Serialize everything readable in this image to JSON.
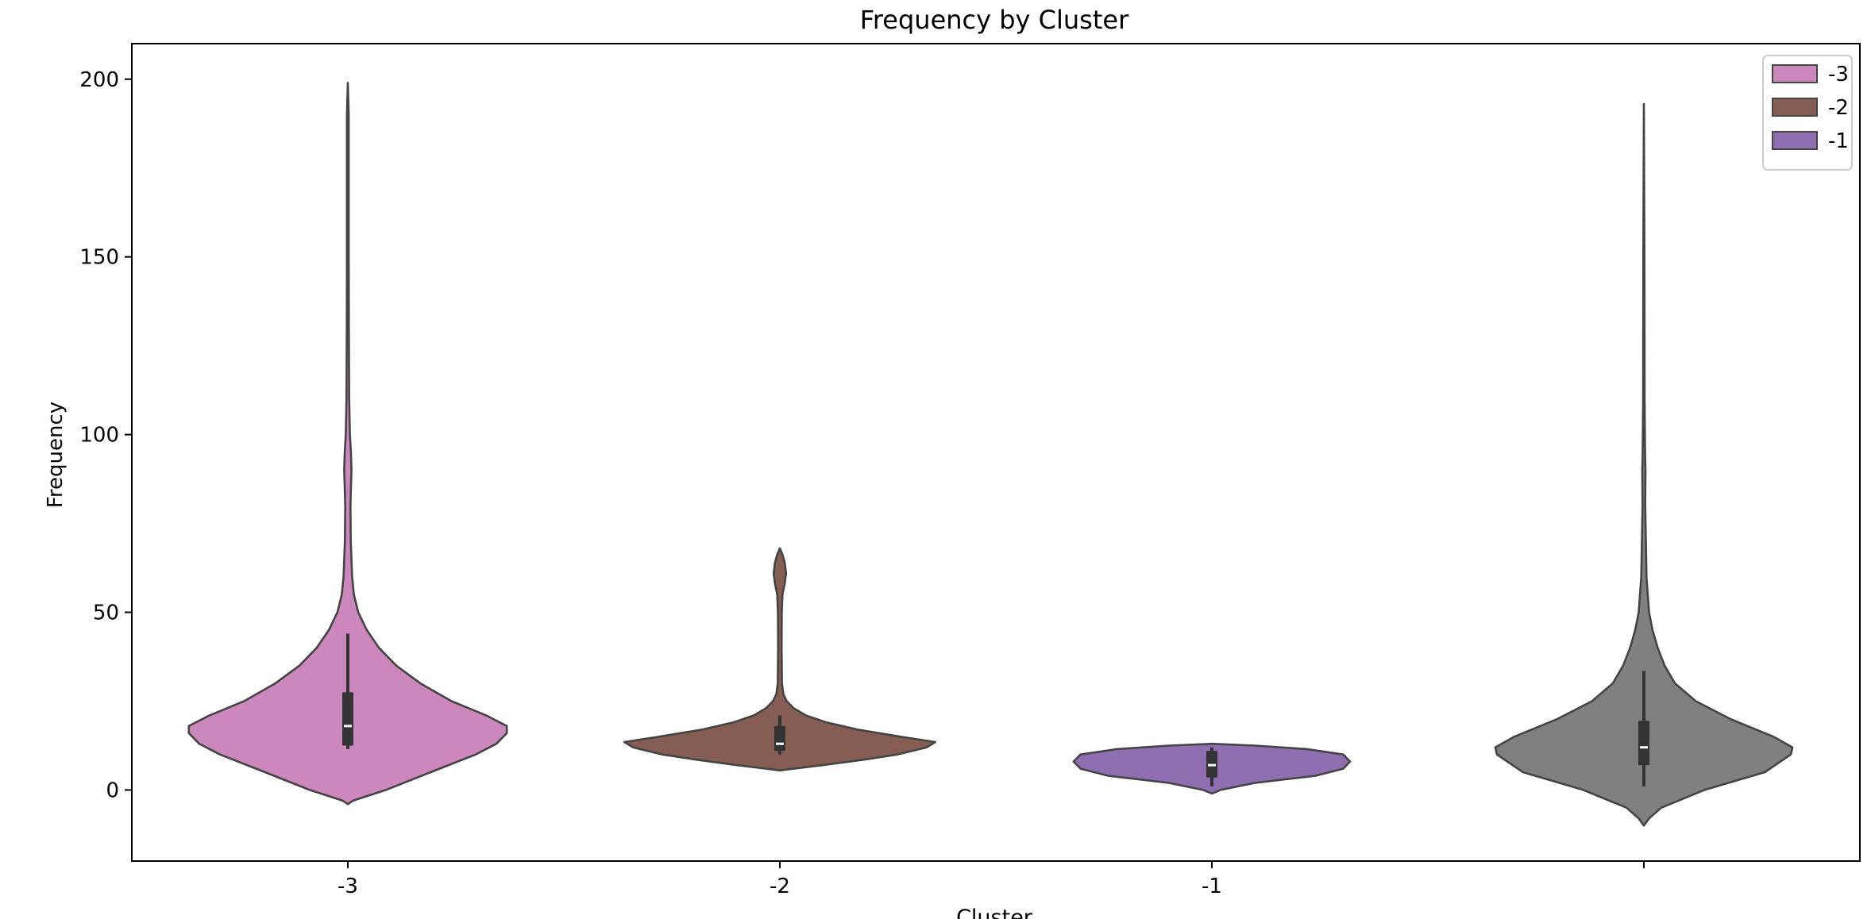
{
  "chart_data": {
    "type": "violin",
    "title": "Frequency by Cluster",
    "xlabel": "Cluster",
    "ylabel": "Frequency",
    "ylim": [
      -20,
      210
    ],
    "yticks": [
      0,
      50,
      100,
      150,
      200
    ],
    "categories": [
      "-3",
      "-2",
      "-1",
      ""
    ],
    "legend": {
      "placement": "top-right",
      "entries": [
        {
          "label": "-3",
          "color": "#cc87bd"
        },
        {
          "label": "-2",
          "color": "#855d52"
        },
        {
          "label": "-1",
          "color": "#8f6eb2"
        }
      ]
    },
    "series": [
      {
        "category": "-3",
        "color": "#cc87bd",
        "box": {
          "q1": 12.5,
          "median": 18,
          "q3": 27.5,
          "whisker_low": 11.5,
          "whisker_high": 44
        },
        "profile": [
          [
            -4,
            0.0
          ],
          [
            -3,
            0.03
          ],
          [
            0,
            0.22
          ],
          [
            5,
            0.48
          ],
          [
            10,
            0.74
          ],
          [
            13,
            0.86
          ],
          [
            16,
            0.92
          ],
          [
            18,
            0.92
          ],
          [
            21,
            0.8
          ],
          [
            25,
            0.6
          ],
          [
            30,
            0.42
          ],
          [
            35,
            0.28
          ],
          [
            40,
            0.18
          ],
          [
            45,
            0.11
          ],
          [
            50,
            0.06
          ],
          [
            55,
            0.035
          ],
          [
            60,
            0.025
          ],
          [
            70,
            0.017
          ],
          [
            80,
            0.015
          ],
          [
            85,
            0.018
          ],
          [
            90,
            0.021
          ],
          [
            95,
            0.018
          ],
          [
            100,
            0.012
          ],
          [
            110,
            0.008
          ],
          [
            130,
            0.006
          ],
          [
            150,
            0.005
          ],
          [
            170,
            0.005
          ],
          [
            190,
            0.005
          ],
          [
            199,
            0.0
          ]
        ]
      },
      {
        "category": "-2",
        "color": "#855d52",
        "box": {
          "q1": 11,
          "median": 13,
          "q3": 18,
          "whisker_low": 10,
          "whisker_high": 21
        },
        "profile": [
          [
            5.5,
            0.0
          ],
          [
            6,
            0.08
          ],
          [
            7,
            0.25
          ],
          [
            8.5,
            0.48
          ],
          [
            10,
            0.68
          ],
          [
            12,
            0.85
          ],
          [
            13.5,
            0.9
          ],
          [
            15,
            0.7
          ],
          [
            17,
            0.45
          ],
          [
            19,
            0.27
          ],
          [
            21,
            0.15
          ],
          [
            23,
            0.08
          ],
          [
            25,
            0.04
          ],
          [
            27,
            0.02
          ],
          [
            30,
            0.012
          ],
          [
            40,
            0.01
          ],
          [
            50,
            0.011
          ],
          [
            55,
            0.015
          ],
          [
            58,
            0.028
          ],
          [
            61,
            0.036
          ],
          [
            64,
            0.028
          ],
          [
            66,
            0.017
          ],
          [
            68,
            0.0
          ]
        ]
      },
      {
        "category": "-1",
        "color": "#8f6eb2",
        "box": {
          "q1": 3.5,
          "median": 7,
          "q3": 11,
          "whisker_low": 1,
          "whisker_high": 12
        },
        "profile": [
          [
            -1,
            0.0
          ],
          [
            0,
            0.05
          ],
          [
            2,
            0.25
          ],
          [
            4,
            0.6
          ],
          [
            6,
            0.76
          ],
          [
            8,
            0.8
          ],
          [
            10,
            0.76
          ],
          [
            11.5,
            0.55
          ],
          [
            12.5,
            0.25
          ],
          [
            13,
            0.0
          ]
        ]
      },
      {
        "category": "",
        "color": "#808080",
        "box": {
          "q1": 7,
          "median": 12,
          "q3": 19.5,
          "whisker_low": 1,
          "whisker_high": 33.5
        },
        "profile": [
          [
            -10,
            0.0
          ],
          [
            -8,
            0.03
          ],
          [
            -5,
            0.1
          ],
          [
            0,
            0.35
          ],
          [
            5,
            0.7
          ],
          [
            10,
            0.85
          ],
          [
            12,
            0.86
          ],
          [
            15,
            0.75
          ],
          [
            20,
            0.5
          ],
          [
            25,
            0.3
          ],
          [
            30,
            0.18
          ],
          [
            35,
            0.12
          ],
          [
            40,
            0.08
          ],
          [
            45,
            0.05
          ],
          [
            50,
            0.03
          ],
          [
            60,
            0.015
          ],
          [
            80,
            0.008
          ],
          [
            90,
            0.009
          ],
          [
            95,
            0.007
          ],
          [
            110,
            0.004
          ],
          [
            150,
            0.003
          ],
          [
            193,
            0.0
          ]
        ]
      }
    ]
  }
}
